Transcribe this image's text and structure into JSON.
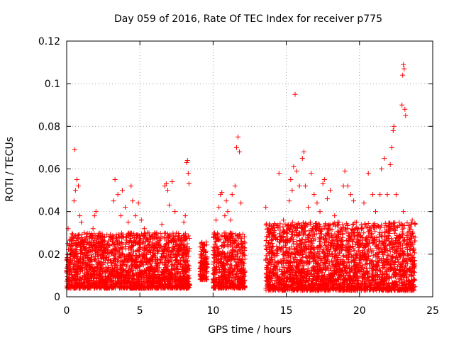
{
  "chart_data": {
    "type": "scatter",
    "title": "Day 059 of 2016, Rate Of TEC Index for receiver p775",
    "xlabel": "GPS time / hours",
    "ylabel": "ROTI / TECUs",
    "xlim": [
      0,
      25
    ],
    "ylim": [
      0,
      0.12
    ],
    "xticks": [
      0,
      5,
      10,
      15,
      20,
      25
    ],
    "xtick_labels": [
      "0",
      "5",
      "10",
      "15",
      "20",
      "25"
    ],
    "yticks": [
      0,
      0.02,
      0.04,
      0.06,
      0.08,
      0.1,
      0.12
    ],
    "ytick_labels": [
      "0",
      "0.02",
      "0.04",
      "0.06",
      "0.08",
      "0.1",
      "0.12"
    ],
    "grid": true,
    "marker": "+",
    "color": "#ff0000",
    "series": [
      {
        "name": "ROTI",
        "points": [
          [
            0.1,
            0.032
          ],
          [
            0.3,
            0.028
          ],
          [
            0.5,
            0.045
          ],
          [
            0.55,
            0.069
          ],
          [
            0.6,
            0.05
          ],
          [
            0.7,
            0.055
          ],
          [
            0.8,
            0.052
          ],
          [
            0.9,
            0.038
          ],
          [
            1.0,
            0.035
          ],
          [
            1.2,
            0.03
          ],
          [
            1.4,
            0.028
          ],
          [
            1.5,
            0.022
          ],
          [
            1.7,
            0.024
          ],
          [
            1.8,
            0.032
          ],
          [
            1.9,
            0.038
          ],
          [
            2.0,
            0.04
          ],
          [
            2.2,
            0.025
          ],
          [
            2.5,
            0.02
          ],
          [
            2.8,
            0.022
          ],
          [
            3.0,
            0.028
          ],
          [
            3.2,
            0.045
          ],
          [
            3.3,
            0.055
          ],
          [
            3.5,
            0.048
          ],
          [
            3.7,
            0.038
          ],
          [
            3.8,
            0.05
          ],
          [
            4.0,
            0.042
          ],
          [
            4.2,
            0.035
          ],
          [
            4.4,
            0.052
          ],
          [
            4.5,
            0.045
          ],
          [
            4.7,
            0.038
          ],
          [
            4.9,
            0.044
          ],
          [
            5.1,
            0.036
          ],
          [
            5.3,
            0.032
          ],
          [
            5.5,
            0.03
          ],
          [
            5.7,
            0.028
          ],
          [
            6.0,
            0.03
          ],
          [
            6.2,
            0.026
          ],
          [
            6.3,
            0.024
          ],
          [
            6.5,
            0.034
          ],
          [
            6.7,
            0.052
          ],
          [
            6.8,
            0.053
          ],
          [
            6.9,
            0.05
          ],
          [
            7.0,
            0.043
          ],
          [
            7.2,
            0.054
          ],
          [
            7.4,
            0.04
          ],
          [
            7.6,
            0.028
          ],
          [
            7.8,
            0.024
          ],
          [
            8.0,
            0.035
          ],
          [
            8.1,
            0.038
          ],
          [
            8.2,
            0.063
          ],
          [
            8.25,
            0.064
          ],
          [
            8.3,
            0.058
          ],
          [
            8.35,
            0.053
          ],
          [
            9.2,
            0.025
          ],
          [
            9.4,
            0.022
          ],
          [
            10.2,
            0.036
          ],
          [
            10.4,
            0.042
          ],
          [
            10.5,
            0.048
          ],
          [
            10.6,
            0.049
          ],
          [
            10.8,
            0.038
          ],
          [
            10.9,
            0.045
          ],
          [
            11.0,
            0.04
          ],
          [
            11.2,
            0.036
          ],
          [
            11.3,
            0.048
          ],
          [
            11.5,
            0.052
          ],
          [
            11.6,
            0.07
          ],
          [
            11.7,
            0.075
          ],
          [
            11.8,
            0.068
          ],
          [
            11.9,
            0.044
          ],
          [
            12.0,
            0.025
          ],
          [
            13.6,
            0.042
          ],
          [
            13.8,
            0.032
          ],
          [
            14.0,
            0.028
          ],
          [
            14.2,
            0.034
          ],
          [
            14.5,
            0.058
          ],
          [
            14.8,
            0.036
          ],
          [
            15.0,
            0.03
          ],
          [
            15.2,
            0.045
          ],
          [
            15.3,
            0.055
          ],
          [
            15.4,
            0.05
          ],
          [
            15.5,
            0.061
          ],
          [
            15.6,
            0.095
          ],
          [
            15.7,
            0.059
          ],
          [
            15.9,
            0.052
          ],
          [
            16.1,
            0.065
          ],
          [
            16.2,
            0.068
          ],
          [
            16.3,
            0.052
          ],
          [
            16.5,
            0.042
          ],
          [
            16.7,
            0.058
          ],
          [
            16.9,
            0.048
          ],
          [
            17.1,
            0.044
          ],
          [
            17.3,
            0.04
          ],
          [
            17.5,
            0.053
          ],
          [
            17.6,
            0.055
          ],
          [
            17.8,
            0.046
          ],
          [
            18.0,
            0.05
          ],
          [
            18.3,
            0.038
          ],
          [
            18.6,
            0.035
          ],
          [
            18.9,
            0.052
          ],
          [
            19.0,
            0.059
          ],
          [
            19.2,
            0.052
          ],
          [
            19.4,
            0.048
          ],
          [
            19.6,
            0.045
          ],
          [
            19.8,
            0.035
          ],
          [
            20.0,
            0.03
          ],
          [
            20.3,
            0.044
          ],
          [
            20.6,
            0.058
          ],
          [
            20.9,
            0.048
          ],
          [
            21.1,
            0.04
          ],
          [
            21.4,
            0.048
          ],
          [
            21.5,
            0.06
          ],
          [
            21.7,
            0.065
          ],
          [
            21.9,
            0.048
          ],
          [
            22.1,
            0.062
          ],
          [
            22.2,
            0.07
          ],
          [
            22.3,
            0.078
          ],
          [
            22.35,
            0.08
          ],
          [
            22.5,
            0.048
          ],
          [
            22.7,
            0.035
          ],
          [
            22.8,
            0.028
          ],
          [
            22.9,
            0.09
          ],
          [
            22.95,
            0.104
          ],
          [
            23.0,
            0.109
          ],
          [
            23.05,
            0.107
          ],
          [
            23.1,
            0.088
          ],
          [
            23.15,
            0.085
          ],
          [
            23.0,
            0.04
          ],
          [
            23.3,
            0.03
          ],
          [
            23.6,
            0.036
          ],
          [
            23.8,
            0.034
          ]
        ]
      }
    ],
    "background_density": [
      {
        "x_range": [
          0.0,
          8.4
        ],
        "y_range": [
          0.004,
          0.03
        ]
      },
      {
        "x_range": [
          9.1,
          9.6
        ],
        "y_range": [
          0.008,
          0.026
        ]
      },
      {
        "x_range": [
          10.0,
          12.2
        ],
        "y_range": [
          0.004,
          0.03
        ]
      },
      {
        "x_range": [
          13.6,
          23.8
        ],
        "y_range": [
          0.003,
          0.035
        ]
      }
    ]
  }
}
